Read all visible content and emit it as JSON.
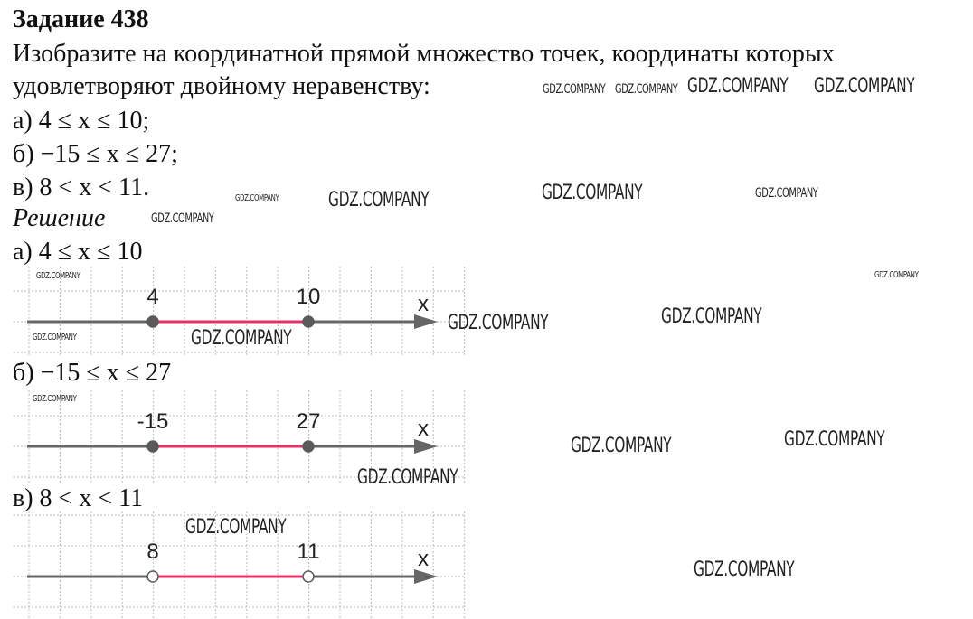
{
  "title": "Задание 438",
  "task": {
    "lines": [
      "Изобразите на координатной прямой множество точек, координаты которых",
      "удовлетворяют двойному неравенству:"
    ],
    "items": [
      "а) 4 ≤ x ≤ 10;",
      "б) −15 ≤ x ≤ 27;",
      "в) 8 < x < 11."
    ]
  },
  "solution": {
    "heading": "Решение",
    "parts": [
      {
        "label": "а) 4 ≤ x ≤ 10",
        "left": "4",
        "right": "10",
        "left_closed": true,
        "right_closed": true,
        "axis": "x"
      },
      {
        "label": "б) −15 ≤ x ≤ 27",
        "left": "-15",
        "right": "27",
        "left_closed": true,
        "right_closed": true,
        "axis": "x"
      },
      {
        "label": "в) 8 < x < 11",
        "left": "8",
        "right": "11",
        "left_closed": false,
        "right_closed": false,
        "axis": "x"
      }
    ]
  },
  "colors": {
    "segment": "#e8306a",
    "axis": "#666666",
    "point": "#5a5a5a",
    "grid": "#bbbbbb"
  },
  "watermark": "GDZ.COMPANY"
}
